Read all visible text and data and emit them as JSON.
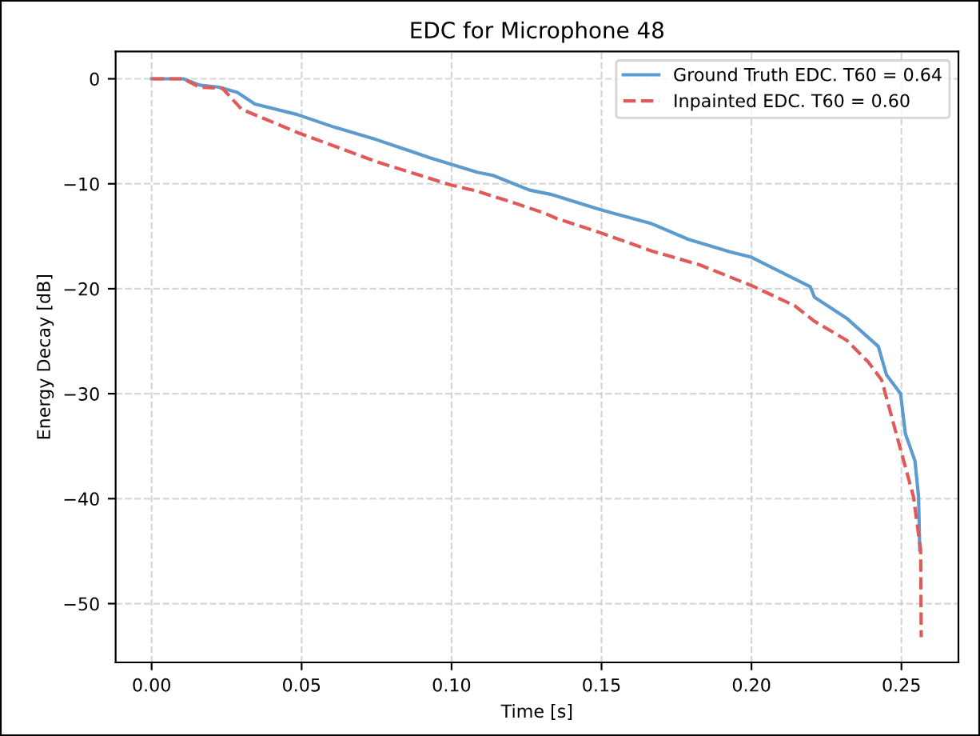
{
  "chart_data": {
    "type": "line",
    "title": "EDC for Microphone 48",
    "xlabel": "Time [s]",
    "ylabel": "Energy Decay [dB]",
    "xlim": [
      -0.012,
      0.269
    ],
    "ylim": [
      -55.6,
      2.6
    ],
    "xticks": [
      {
        "value": 0,
        "label": "0.00"
      },
      {
        "value": 0.05,
        "label": "0.05"
      },
      {
        "value": 0.1,
        "label": "0.10"
      },
      {
        "value": 0.15,
        "label": "0.15"
      },
      {
        "value": 0.2,
        "label": "0.20"
      },
      {
        "value": 0.25,
        "label": "0.25"
      }
    ],
    "yticks": [
      0,
      {
        "value": -10,
        "label": "−10"
      },
      {
        "value": -20,
        "label": "−20"
      },
      {
        "value": -30,
        "label": "−30"
      },
      {
        "value": -40,
        "label": "−40"
      },
      {
        "value": -50,
        "label": "−50"
      }
    ],
    "grid": true,
    "legend": "top right",
    "series": [
      {
        "name": "Ground Truth EDC. T60 = 0.64",
        "color": "#5b9bd0",
        "line_style": "solid",
        "x": [
          0,
          0.0106,
          0.016,
          0.0225,
          0.0286,
          0.0344,
          0.0485,
          0.0608,
          0.075,
          0.0926,
          0.1085,
          0.1138,
          0.126,
          0.133,
          0.15,
          0.1667,
          0.179,
          0.193,
          0.2,
          0.2196,
          0.221,
          0.2317,
          0.2423,
          0.245,
          0.2497,
          0.2513,
          0.2545,
          0.2557,
          0.2561
        ],
        "values": [
          0,
          0,
          -0.6,
          -0.8,
          -1.3,
          -2.4,
          -3.4,
          -4.6,
          -5.8,
          -7.5,
          -8.9,
          -9.2,
          -10.6,
          -11.0,
          -12.5,
          -13.8,
          -15.3,
          -16.5,
          -17.0,
          -19.8,
          -20.8,
          -22.8,
          -25.5,
          -28.2,
          -30.0,
          -33.8,
          -36.4,
          -39.8,
          -44.9
        ]
      },
      {
        "name": "Inpainted EDC. T60 = 0.60",
        "color": "#e05a5a",
        "line_style": "dashed",
        "x": [
          0,
          0.0106,
          0.016,
          0.0236,
          0.03,
          0.0485,
          0.075,
          0.0996,
          0.1085,
          0.1206,
          0.131,
          0.135,
          0.15,
          0.1667,
          0.1825,
          0.2,
          0.2143,
          0.221,
          0.2317,
          0.239,
          0.2434,
          0.2496,
          0.254,
          0.2564,
          0.2566
        ],
        "values": [
          0,
          0,
          -0.8,
          -0.9,
          -2.9,
          -5.1,
          -7.9,
          -10.1,
          -10.7,
          -11.8,
          -12.8,
          -13.3,
          -14.7,
          -16.4,
          -17.7,
          -19.7,
          -21.6,
          -23.1,
          -24.9,
          -27.0,
          -28.7,
          -35.2,
          -39.8,
          -44.9,
          -53.2
        ]
      }
    ]
  }
}
